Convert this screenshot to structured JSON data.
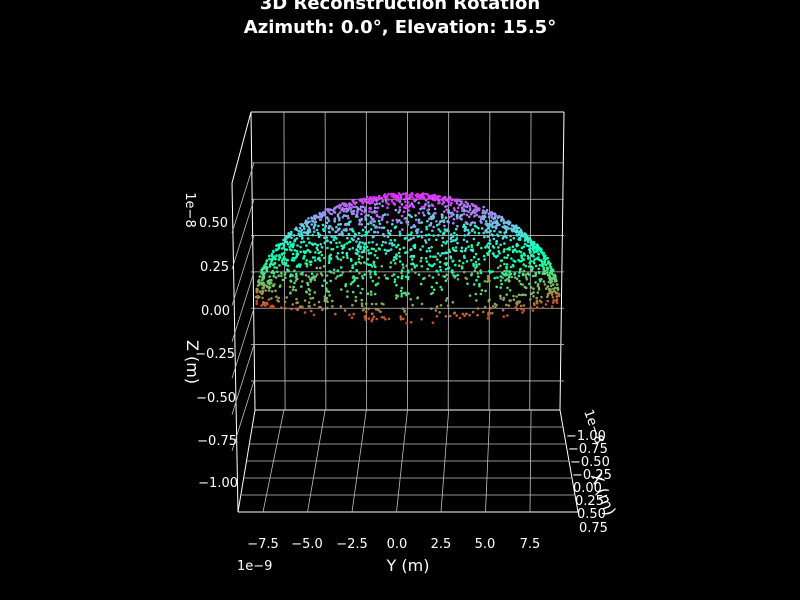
{
  "title": {
    "line1": "3D Reconstruction Rotation",
    "line2": "Azimuth: 0.0°, Elevation: 15.5°"
  },
  "chart_data": {
    "type": "scatter",
    "subtype": "3d-point-cloud",
    "title": "3D Reconstruction Rotation",
    "subtitle": "Azimuth: 0.0°, Elevation: 15.5°",
    "view": {
      "azimuth_deg": 0.0,
      "elevation_deg": 15.5
    },
    "colormap": "rainbow",
    "colors": {
      "background": "#000000",
      "pane_edge": "#ffffff",
      "grid": "#bfbfbf",
      "text": "#ffffff"
    },
    "grid": true,
    "description_shape": "dome-shaped shell point cloud, color by height",
    "axes": {
      "x": {
        "label": "X (m)",
        "offset": "1e−8",
        "ticks": [
          "−1.00",
          "−0.75",
          "−0.50",
          "−0.25",
          "0.00",
          "0.25",
          "0.50",
          "0.75"
        ],
        "values": [
          -1.0,
          -0.75,
          -0.5,
          -0.25,
          0.0,
          0.25,
          0.5,
          0.75
        ]
      },
      "y": {
        "label": "Y (m)",
        "offset": "1e−9",
        "ticks": [
          "−7.5",
          "−5.0",
          "−2.5",
          "0.0",
          "2.5",
          "5.0",
          "7.5"
        ],
        "values": [
          -7.5,
          -5.0,
          -2.5,
          0.0,
          2.5,
          5.0,
          7.5
        ]
      },
      "z": {
        "label": "Z (m)",
        "offset": "1e−8",
        "ticks": [
          "−1.00",
          "−0.75",
          "−0.50",
          "−0.25",
          "0.00",
          "0.25",
          "0.50"
        ],
        "values": [
          -1.0,
          -0.75,
          -0.5,
          -0.25,
          0.0,
          0.25,
          0.5
        ]
      }
    },
    "ylim": [
      -9.5e-09,
      9.5e-09
    ],
    "zlim": [
      -1.2e-08,
      8.5e-09
    ],
    "dome": {
      "center_y": 0.0,
      "radius_y": 9.4e-09,
      "top_z": 3e-09,
      "base_z": -3.5e-09
    }
  }
}
